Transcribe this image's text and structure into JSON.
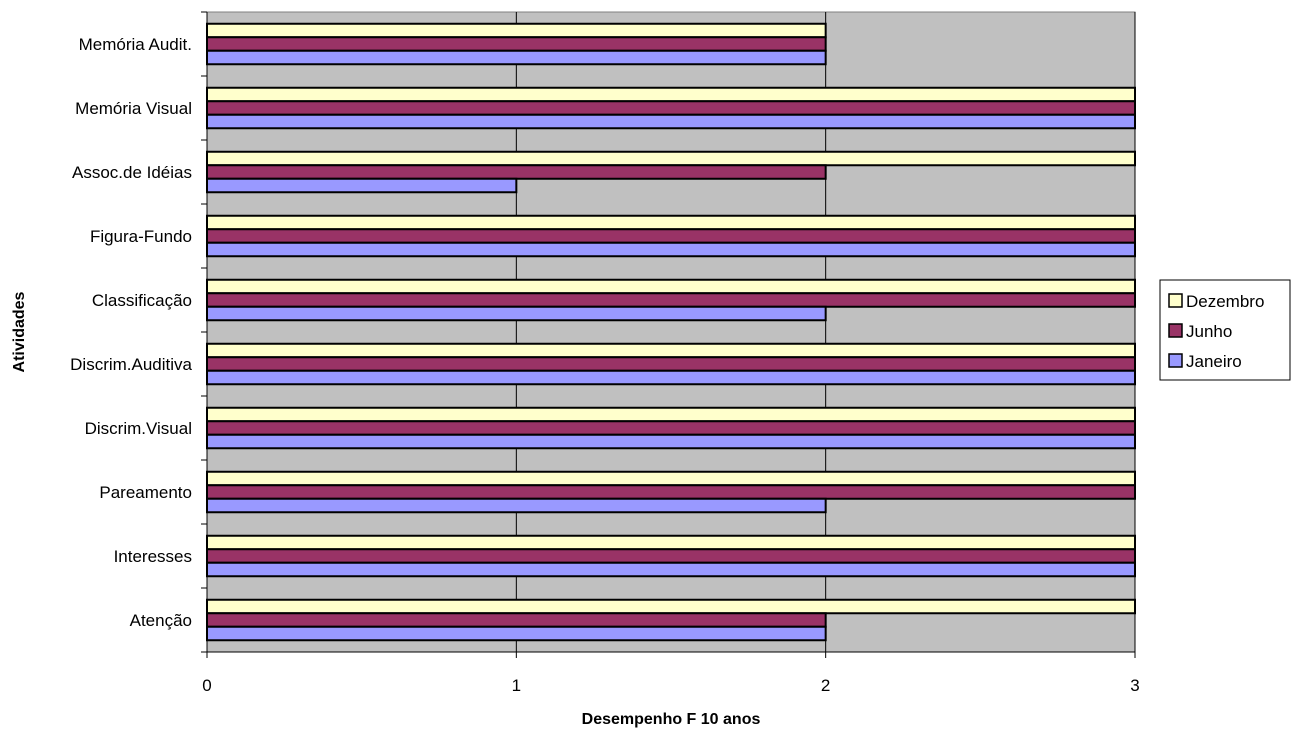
{
  "chart_data": {
    "type": "bar",
    "orientation": "horizontal",
    "title": "",
    "xlabel": "Desempenho F 10 anos",
    "ylabel": "Atividades",
    "xlim": [
      0,
      3
    ],
    "xticks": [
      "0",
      "1",
      "2",
      "3"
    ],
    "grid": true,
    "legend_position": "right",
    "categories": [
      "Atenção",
      "Interesses",
      "Pareamento",
      "Discrim.Visual",
      "Discrim.Auditiva",
      "Classificação",
      "Figura-Fundo",
      "Assoc.de Idéias",
      "Memória Visual",
      "Memória  Audit."
    ],
    "series": [
      {
        "name": "Janeiro",
        "color": "#9999ff",
        "values": [
          2,
          3,
          2,
          3,
          3,
          2,
          3,
          1,
          3,
          2
        ]
      },
      {
        "name": "Junho",
        "color": "#993366",
        "values": [
          2,
          3,
          3,
          3,
          3,
          3,
          3,
          2,
          3,
          2
        ]
      },
      {
        "name": "Dezembro",
        "color": "#ffffcc",
        "values": [
          3,
          3,
          3,
          3,
          3,
          3,
          3,
          3,
          3,
          2
        ]
      }
    ],
    "plot_background": "#c0c0c0"
  }
}
